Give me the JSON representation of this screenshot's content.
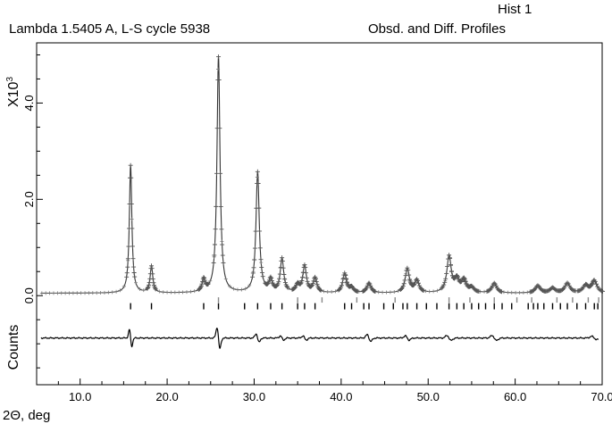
{
  "header": {
    "hist": "Hist 1",
    "left": "Lambda 1.5405 A, L-S cycle 5938",
    "right": "Obsd. and Diff. Profiles"
  },
  "chart_data": {
    "type": "line",
    "xlabel": "2Θ, deg",
    "ylabel": "Counts",
    "scale_label": "X10",
    "scale_exponent": "3",
    "xlim": [
      5.0,
      70.0
    ],
    "ylim": [
      -1.85,
      5.25
    ],
    "x_ticks": [
      10.0,
      20.0,
      30.0,
      40.0,
      50.0,
      60.0,
      70.0
    ],
    "x_tick_labels": [
      "10.0",
      "20.0",
      "30.0",
      "40.0",
      "50.0",
      "60.0",
      "70.0"
    ],
    "y_ticks": [
      0.0,
      2.0,
      4.0
    ],
    "y_tick_labels": [
      "0.0",
      "2.0",
      "4.0"
    ],
    "background_level": 0.05,
    "difference_offset": -0.88,
    "peaks": [
      {
        "x": 15.8,
        "height": 2.65
      },
      {
        "x": 18.2,
        "height": 0.55
      },
      {
        "x": 24.2,
        "height": 0.25
      },
      {
        "x": 25.9,
        "height": 4.9
      },
      {
        "x": 30.4,
        "height": 2.5
      },
      {
        "x": 31.9,
        "height": 0.25
      },
      {
        "x": 33.2,
        "height": 0.7
      },
      {
        "x": 35.0,
        "height": 0.15
      },
      {
        "x": 35.8,
        "height": 0.55
      },
      {
        "x": 37.0,
        "height": 0.3
      },
      {
        "x": 40.4,
        "height": 0.4
      },
      {
        "x": 41.2,
        "height": 0.1
      },
      {
        "x": 43.2,
        "height": 0.2
      },
      {
        "x": 47.6,
        "height": 0.5
      },
      {
        "x": 48.7,
        "height": 0.25
      },
      {
        "x": 52.4,
        "height": 0.75
      },
      {
        "x": 53.3,
        "height": 0.25
      },
      {
        "x": 54.1,
        "height": 0.25
      },
      {
        "x": 55.0,
        "height": 0.1
      },
      {
        "x": 57.6,
        "height": 0.2
      },
      {
        "x": 62.6,
        "height": 0.15
      },
      {
        "x": 64.3,
        "height": 0.1
      },
      {
        "x": 66.0,
        "height": 0.2
      },
      {
        "x": 68.1,
        "height": 0.15
      },
      {
        "x": 69.1,
        "height": 0.25
      }
    ],
    "reflection_ticks_row1": [
      15.8,
      18.2,
      24.2,
      25.9,
      28.9,
      30.4,
      31.9,
      33.2,
      35.0,
      35.8,
      37.0,
      40.4,
      41.2,
      42.6,
      43.2,
      44.9,
      46.0,
      47.1,
      47.6,
      48.7,
      49.8,
      51.0,
      52.4,
      53.3,
      54.1,
      55.0,
      55.8,
      56.6,
      57.6,
      58.5,
      59.6,
      61.5,
      62.1,
      62.6,
      63.3,
      64.3,
      65.2,
      66.0,
      67.1,
      68.1,
      69.1,
      69.5
    ],
    "reflection_ticks_row2": [
      25.9,
      35.0,
      37.8,
      41.8,
      46.2,
      52.4,
      54.8,
      57.6,
      60.2,
      61.9,
      64.8,
      66.6,
      68.4,
      69.6
    ],
    "difference_features": [
      {
        "x": 15.8,
        "amplitude": 0.2
      },
      {
        "x": 25.9,
        "amplitude": 0.25
      },
      {
        "x": 30.4,
        "amplitude": 0.1
      },
      {
        "x": 33.2,
        "amplitude": 0.05
      },
      {
        "x": 35.8,
        "amplitude": 0.05
      },
      {
        "x": 43.2,
        "amplitude": 0.08
      },
      {
        "x": 47.6,
        "amplitude": 0.05
      },
      {
        "x": 52.4,
        "amplitude": 0.06
      },
      {
        "x": 57.6,
        "amplitude": 0.06
      },
      {
        "x": 69.1,
        "amplitude": 0.04
      }
    ],
    "grid": false,
    "legend": "none"
  }
}
